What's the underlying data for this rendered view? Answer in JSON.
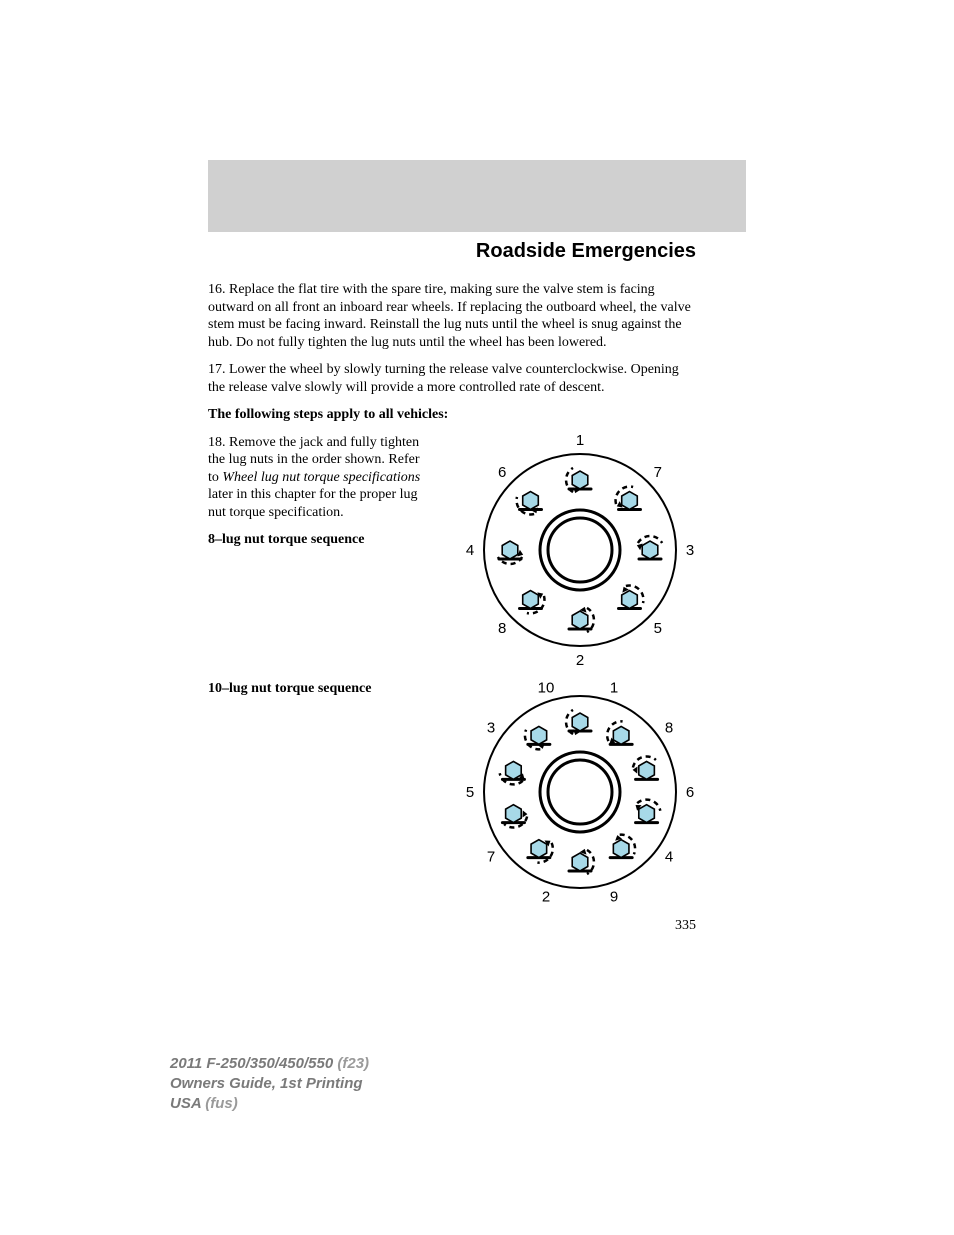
{
  "section_title": "Roadside Emergencies",
  "paragraphs": {
    "p16": "16. Replace the flat tire with the spare tire, making sure the valve stem is facing outward on all front an inboard rear wheels. If replacing the outboard wheel, the valve stem must be facing inward. Reinstall the lug nuts until the wheel is snug against the hub. Do not fully tighten the lug nuts until the wheel has been lowered.",
    "p17": "17. Lower the wheel by slowly turning the release valve counterclockwise. Opening the release valve slowly will provide a more controlled rate of descent.",
    "applies_all": "The following steps apply to all vehicles:",
    "p18_a": "18. Remove the jack and fully tighten the lug nuts in the order shown. Refer to ",
    "p18_i": "Wheel lug nut torque specifications",
    "p18_b": " later in this chapter for the proper lug nut torque specification.",
    "sub8": "8–lug nut torque sequence",
    "sub10": "10–lug nut torque sequence"
  },
  "diagrams": {
    "common": {
      "outer_stroke": "#000000",
      "outer_stroke_w": 2,
      "inner_stroke_w": 3,
      "hex_fill": "#a7d9e8",
      "hex_stroke": "#000000",
      "arrow_stroke": "#000000",
      "dash_pattern": "5 4",
      "label_font": "Arial, Helvetica, sans-serif",
      "label_size": 15
    },
    "eight": {
      "size": 232,
      "outer_r": 96,
      "inner_r_out": 40,
      "inner_r_in": 32,
      "bolt_r": 70,
      "hex_r": 9,
      "labels": [
        "1",
        "2",
        "3",
        "4",
        "5",
        "6",
        "7",
        "8"
      ],
      "angles_deg": [
        270,
        90,
        0,
        180,
        45,
        225,
        315,
        135
      ],
      "label_r": 110
    },
    "ten": {
      "size": 232,
      "outer_r": 96,
      "inner_r_out": 40,
      "inner_r_in": 32,
      "bolt_r": 70,
      "hex_r": 9,
      "labels": [
        "1",
        "2",
        "3",
        "4",
        "5",
        "6",
        "7",
        "8",
        "9",
        "10"
      ],
      "angles_deg": [
        288,
        108,
        216,
        36,
        180,
        0,
        144,
        324,
        72,
        252
      ],
      "label_r": 110
    }
  },
  "page_number": "335",
  "footer": {
    "line1a": "2011 F-250/350/450/550 ",
    "line1b": "(f23)",
    "line2": "Owners Guide, 1st Printing",
    "line3a": "USA ",
    "line3b": "(fus)"
  }
}
